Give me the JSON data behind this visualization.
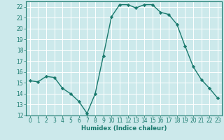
{
  "x": [
    0,
    1,
    2,
    3,
    4,
    5,
    6,
    7,
    8,
    9,
    10,
    11,
    12,
    13,
    14,
    15,
    16,
    17,
    18,
    19,
    20,
    21,
    22,
    23
  ],
  "y": [
    15.2,
    15.1,
    15.6,
    15.5,
    14.5,
    14.0,
    13.3,
    12.2,
    14.0,
    17.5,
    21.1,
    22.2,
    22.2,
    21.9,
    22.2,
    22.2,
    21.5,
    21.3,
    20.4,
    18.4,
    16.5,
    15.3,
    14.5,
    13.6
  ],
  "xlim": [
    -0.5,
    23.5
  ],
  "ylim": [
    12,
    22.5
  ],
  "yticks": [
    12,
    13,
    14,
    15,
    16,
    17,
    18,
    19,
    20,
    21,
    22
  ],
  "xticks": [
    0,
    1,
    2,
    3,
    4,
    5,
    6,
    7,
    8,
    9,
    10,
    11,
    12,
    13,
    14,
    15,
    16,
    17,
    18,
    19,
    20,
    21,
    22,
    23
  ],
  "xlabel": "Humidex (Indice chaleur)",
  "line_color": "#1a7a6e",
  "marker": "D",
  "marker_size": 2.2,
  "bg_color": "#cce9eb",
  "grid_color": "#ffffff",
  "tick_fontsize": 5.5,
  "xlabel_fontsize": 6.2
}
